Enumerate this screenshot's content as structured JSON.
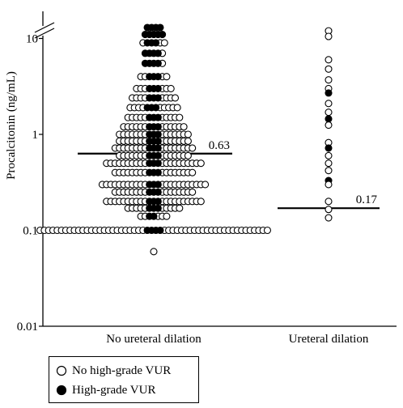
{
  "chart_data": {
    "type": "scatter",
    "subtype": "dot-plot",
    "y_scale": "log",
    "ylabel": "Procalcitonin (ng/mL)",
    "ylim": [
      0.01,
      14
    ],
    "y_ticks": [
      "0.01",
      "0.1",
      "1",
      "10"
    ],
    "y_axis_break": true,
    "categories": [
      "No ureteral dilation",
      "Ureteral dilation"
    ],
    "series": [
      {
        "name": "No high-grade VUR",
        "marker": "open-circle"
      },
      {
        "name": "High-grade VUR",
        "marker": "filled-circle"
      }
    ],
    "cutoffs": [
      {
        "category": "No ureteral dilation",
        "value": 0.63,
        "label": "0.63"
      },
      {
        "category": "Ureteral dilation",
        "value": 0.17,
        "label": "0.17"
      }
    ],
    "groups": [
      {
        "category": "No ureteral dilation",
        "rows": [
          {
            "y": 13,
            "open": 0,
            "filled": 4
          },
          {
            "y": 11,
            "open": 0,
            "filled": 5
          },
          {
            "y": 9,
            "open": 3,
            "filled": 3
          },
          {
            "y": 7,
            "open": 1,
            "filled": 4
          },
          {
            "y": 5.5,
            "open": 1,
            "filled": 4
          },
          {
            "y": 4,
            "open": 4,
            "filled": 3
          },
          {
            "y": 3,
            "open": 6,
            "filled": 3
          },
          {
            "y": 2.4,
            "open": 8,
            "filled": 3
          },
          {
            "y": 1.9,
            "open": 9,
            "filled": 3
          },
          {
            "y": 1.5,
            "open": 10,
            "filled": 3
          },
          {
            "y": 1.2,
            "open": 12,
            "filled": 3
          },
          {
            "y": 1.0,
            "open": 14,
            "filled": 3
          },
          {
            "y": 0.85,
            "open": 14,
            "filled": 3
          },
          {
            "y": 0.72,
            "open": 16,
            "filled": 3
          },
          {
            "y": 0.6,
            "open": 14,
            "filled": 3
          },
          {
            "y": 0.5,
            "open": 20,
            "filled": 3
          },
          {
            "y": 0.4,
            "open": 16,
            "filled": 3
          },
          {
            "y": 0.3,
            "open": 22,
            "filled": 3
          },
          {
            "y": 0.25,
            "open": 16,
            "filled": 3
          },
          {
            "y": 0.2,
            "open": 20,
            "filled": 3
          },
          {
            "y": 0.17,
            "open": 10,
            "filled": 3
          },
          {
            "y": 0.14,
            "open": 5,
            "filled": 2
          },
          {
            "y": 0.1,
            "open": 50,
            "filled": 4
          },
          {
            "y": 0.06,
            "open": 1,
            "filled": 0
          }
        ]
      },
      {
        "category": "Ureteral dilation",
        "rows": [
          {
            "y": 12,
            "open": 1,
            "filled": 0
          },
          {
            "y": 10.5,
            "open": 1,
            "filled": 0
          },
          {
            "y": 6,
            "open": 1,
            "filled": 0
          },
          {
            "y": 4.8,
            "open": 1,
            "filled": 0
          },
          {
            "y": 3.7,
            "open": 1,
            "filled": 0
          },
          {
            "y": 3.0,
            "open": 1,
            "filled": 0
          },
          {
            "y": 2.7,
            "open": 0,
            "filled": 1
          },
          {
            "y": 2.1,
            "open": 1,
            "filled": 0
          },
          {
            "y": 1.7,
            "open": 1,
            "filled": 0
          },
          {
            "y": 1.45,
            "open": 0,
            "filled": 1
          },
          {
            "y": 1.25,
            "open": 1,
            "filled": 0
          },
          {
            "y": 0.82,
            "open": 1,
            "filled": 0
          },
          {
            "y": 0.72,
            "open": 0,
            "filled": 1
          },
          {
            "y": 0.6,
            "open": 1,
            "filled": 0
          },
          {
            "y": 0.5,
            "open": 1,
            "filled": 0
          },
          {
            "y": 0.42,
            "open": 1,
            "filled": 0
          },
          {
            "y": 0.33,
            "open": 0,
            "filled": 1
          },
          {
            "y": 0.3,
            "open": 1,
            "filled": 0
          },
          {
            "y": 0.2,
            "open": 1,
            "filled": 0
          },
          {
            "y": 0.165,
            "open": 1,
            "filled": 0
          },
          {
            "y": 0.135,
            "open": 1,
            "filled": 0
          }
        ]
      }
    ]
  }
}
